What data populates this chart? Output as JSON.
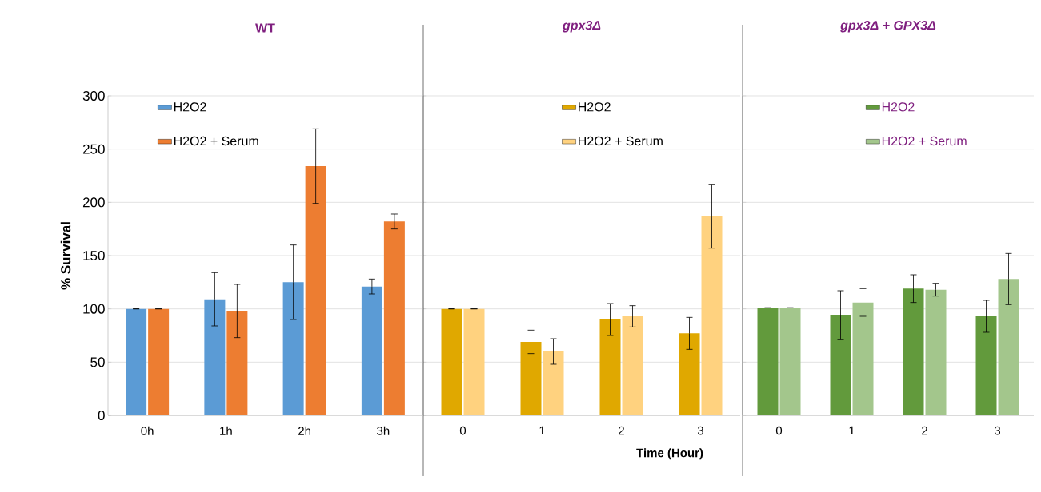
{
  "chart_data": [
    {
      "type": "bar",
      "title": "WT",
      "ylabel": "% Survival",
      "categories": [
        "0h",
        "1h",
        "2h",
        "3h"
      ],
      "ylim": [
        0,
        300
      ],
      "yticks": [
        0,
        50,
        100,
        150,
        200,
        250,
        300
      ],
      "grid": "y",
      "legend": "top left",
      "series": [
        {
          "name": "H2O2",
          "color": "#5b9bd5",
          "values": [
            100,
            109,
            125,
            121
          ],
          "errors": [
            0,
            25,
            35,
            7
          ]
        },
        {
          "name": "H2O2 + Serum",
          "color": "#ed7d31",
          "values": [
            100,
            98,
            234,
            182
          ],
          "errors": [
            0,
            25,
            35,
            7
          ]
        }
      ]
    },
    {
      "type": "bar",
      "title": "gpx3Δ",
      "xlabel": "Time (Hour)",
      "categories": [
        "0",
        "1",
        "2",
        "3"
      ],
      "ylim": [
        0,
        300
      ],
      "yticks": [
        0,
        50,
        100,
        150,
        200,
        250,
        300
      ],
      "grid": "y",
      "legend": "top",
      "tick_labels": "x",
      "series": [
        {
          "name": "H2O2",
          "color": "#e0a800",
          "values": [
            100,
            69,
            90,
            77
          ],
          "errors": [
            0,
            11,
            15,
            15
          ]
        },
        {
          "name": "H2O2 + Serum",
          "color": "#ffd27f",
          "values": [
            100,
            60,
            93,
            187
          ],
          "errors": [
            0,
            12,
            10,
            30
          ]
        }
      ]
    },
    {
      "type": "bar",
      "title": "gpx3Δ + GPX3Δ",
      "categories": [
        "0",
        "1",
        "2",
        "3"
      ],
      "ylim": [
        0,
        300
      ],
      "yticks": [
        0,
        50,
        100,
        150,
        200,
        250,
        300
      ],
      "grid": "y",
      "legend": "top",
      "tick_labels": "x",
      "series": [
        {
          "name": "H2O2",
          "color": "#629a3c",
          "values": [
            101,
            94,
            119,
            93
          ],
          "errors": [
            0,
            23,
            13,
            15
          ]
        },
        {
          "name": "H2O2 + Serum",
          "color": "#a3c68c",
          "values": [
            101,
            106,
            118,
            128
          ],
          "errors": [
            0,
            13,
            6,
            24
          ]
        }
      ]
    }
  ]
}
